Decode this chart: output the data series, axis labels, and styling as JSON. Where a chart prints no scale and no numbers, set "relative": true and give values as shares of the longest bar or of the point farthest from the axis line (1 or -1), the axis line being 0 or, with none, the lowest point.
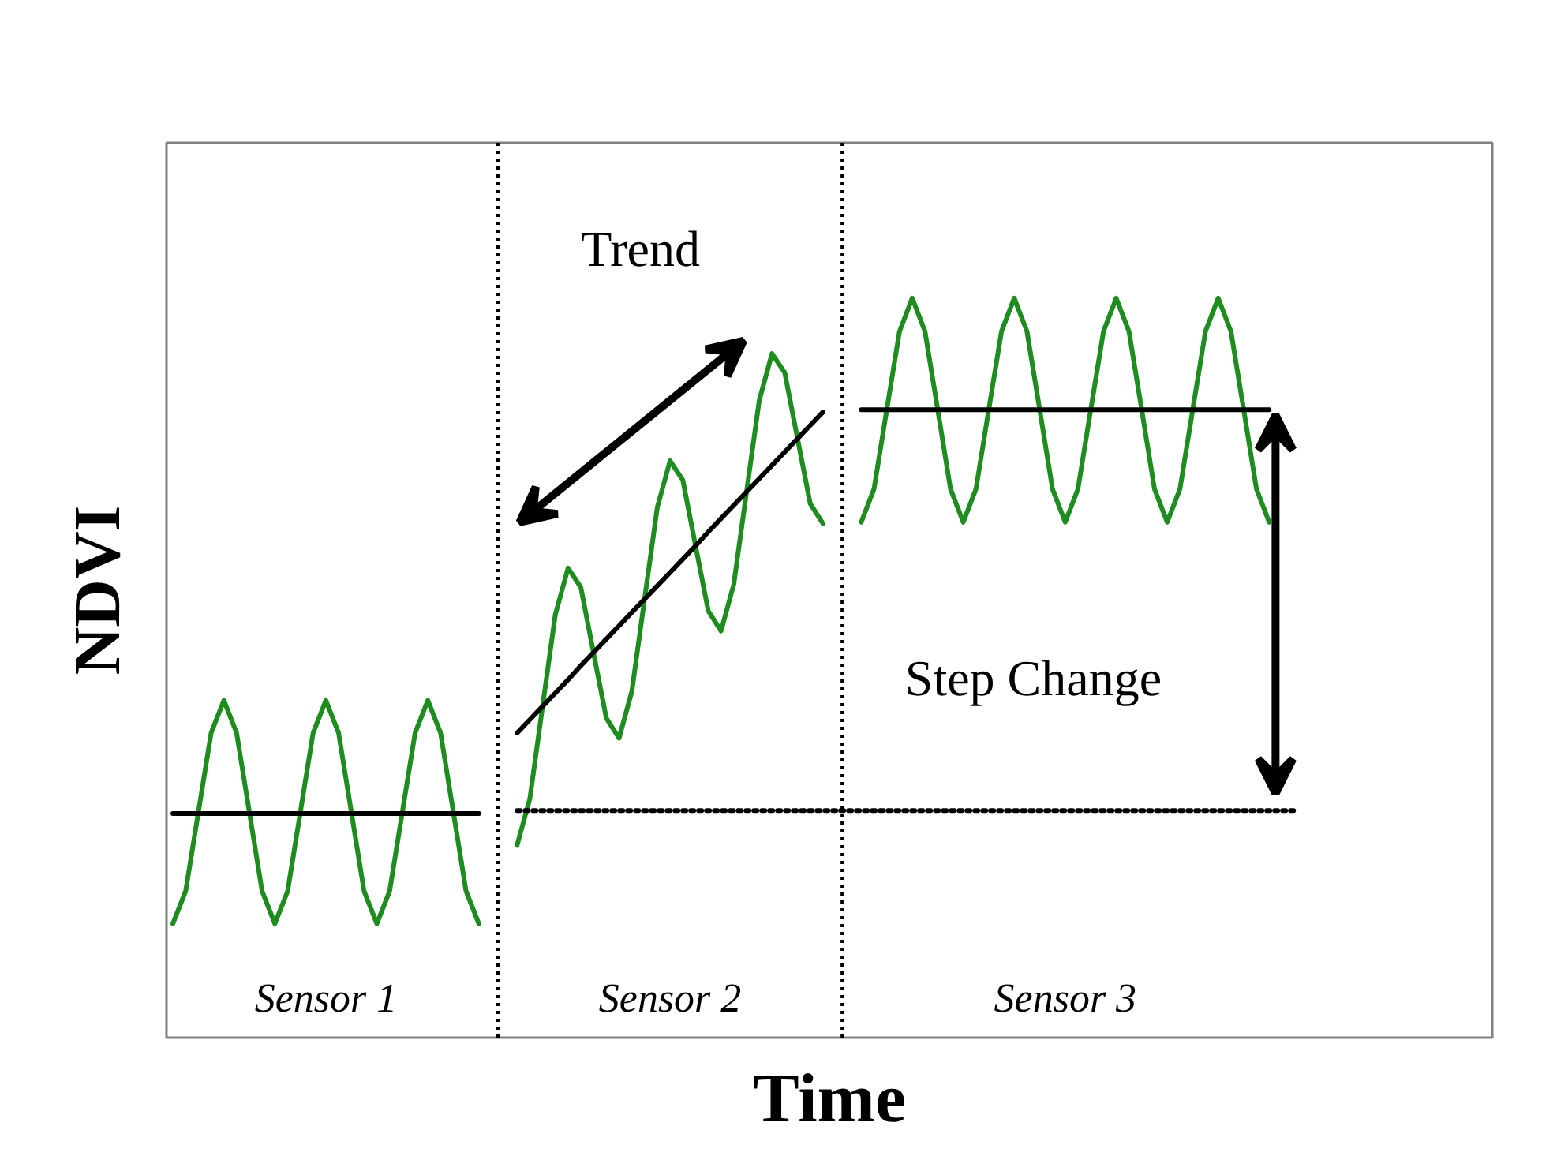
{
  "chart_data": {
    "type": "line",
    "relative": true,
    "xlabel": "Time",
    "ylabel": "NDVI",
    "tick_labels": false,
    "grid": false,
    "categories": [
      null,
      null,
      null,
      null,
      null,
      null,
      null,
      null,
      null,
      null,
      null,
      null,
      null,
      null,
      null,
      null,
      null,
      null,
      null,
      null,
      null,
      null,
      null,
      null,
      null,
      null,
      null,
      null,
      null,
      null,
      null,
      null,
      null,
      null,
      null,
      null,
      null,
      null,
      null,
      null,
      null,
      null,
      null,
      null,
      null,
      null,
      null,
      null,
      null,
      null,
      null,
      null,
      null,
      null,
      null,
      null,
      null,
      null,
      null,
      null,
      null,
      null,
      null,
      null,
      null,
      null,
      null,
      null,
      null,
      null,
      null,
      null,
      null,
      null,
      null,
      null,
      null,
      null,
      null,
      null,
      null,
      null,
      null,
      null,
      null,
      null,
      null,
      null,
      null,
      null,
      null,
      null,
      null,
      null,
      null,
      null,
      null,
      null,
      null,
      null,
      null,
      null,
      null,
      null
    ],
    "series": [
      {
        "color": "#1e8c1e",
        "values": [
          0.154,
          0.198,
          0.305,
          0.412,
          0.456,
          0.412,
          0.305,
          0.198,
          0.154,
          0.198,
          0.305,
          0.412,
          0.456,
          0.412,
          0.305,
          0.198,
          0.154,
          0.198,
          0.305,
          0.412,
          0.456,
          0.412,
          0.305,
          0.198,
          0.154,
          null,
          null,
          null,
          null,
          null,
          null,
          null,
          null,
          null,
          null,
          null,
          null,
          null,
          null,
          null,
          null,
          null,
          null,
          null,
          null,
          null,
          null,
          null,
          null,
          null,
          null,
          null,
          null,
          null,
          null,
          null,
          null,
          null,
          null,
          null,
          null,
          null,
          null,
          null,
          null,
          null,
          null,
          null,
          null,
          null,
          null,
          null,
          null,
          null,
          null,
          null,
          null,
          null,
          null,
          null,
          null,
          null,
          null,
          null,
          null,
          null,
          null,
          null,
          null,
          null,
          null,
          null,
          null,
          null,
          null,
          null,
          null,
          null,
          null,
          null,
          null,
          null,
          null,
          null
        ]
      },
      {
        "color": "#1e8c1e",
        "values": [
          null,
          null,
          null,
          null,
          null,
          null,
          null,
          null,
          null,
          null,
          null,
          null,
          null,
          null,
          null,
          null,
          null,
          null,
          null,
          null,
          null,
          null,
          null,
          null,
          null,
          null,
          null,
          0.26,
          0.323,
          0.448,
          0.572,
          0.635,
          0.609,
          0.52,
          0.432,
          0.405,
          0.468,
          0.593,
          0.717,
          0.78,
          0.754,
          0.665,
          0.577,
          0.55,
          0.613,
          0.738,
          0.862,
          0.925,
          0.899,
          0.81,
          0.722,
          0.695,
          null,
          null,
          null,
          null,
          null,
          null,
          null,
          null,
          null,
          null,
          null,
          null,
          null,
          null,
          null,
          null,
          null,
          null,
          null,
          null,
          null,
          null,
          null,
          null,
          null,
          null,
          null,
          null,
          null,
          null,
          null,
          null,
          null,
          null,
          null,
          null,
          null,
          null,
          null,
          null,
          null,
          null,
          null,
          null,
          null,
          null,
          null,
          null,
          null,
          null,
          null,
          null
        ]
      },
      {
        "color": "#1e8c1e",
        "values": [
          null,
          null,
          null,
          null,
          null,
          null,
          null,
          null,
          null,
          null,
          null,
          null,
          null,
          null,
          null,
          null,
          null,
          null,
          null,
          null,
          null,
          null,
          null,
          null,
          null,
          null,
          null,
          null,
          null,
          null,
          null,
          null,
          null,
          null,
          null,
          null,
          null,
          null,
          null,
          null,
          null,
          null,
          null,
          null,
          null,
          null,
          null,
          null,
          null,
          null,
          null,
          null,
          null,
          null,
          0.697,
          0.742,
          0.849,
          0.955,
          1,
          0.955,
          0.849,
          0.742,
          0.697,
          0.742,
          0.849,
          0.955,
          1,
          0.955,
          0.849,
          0.742,
          0.697,
          0.742,
          0.849,
          0.955,
          1,
          0.955,
          0.849,
          0.742,
          0.697,
          0.742,
          0.849,
          0.955,
          1,
          0.955,
          0.849,
          0.742,
          0.697,
          null,
          null,
          null,
          null,
          null,
          null,
          null,
          null,
          null,
          null,
          null,
          null,
          null,
          null,
          null,
          null,
          null
        ]
      },
      {
        "color": "#000000",
        "values": [
          0.303,
          0.303,
          0.303,
          0.303,
          0.303,
          0.303,
          0.303,
          0.303,
          0.303,
          0.303,
          0.303,
          0.303,
          0.303,
          0.303,
          0.303,
          0.303,
          0.303,
          0.303,
          0.303,
          0.303,
          0.303,
          0.303,
          0.303,
          0.303,
          0.303,
          null,
          null,
          null,
          null,
          null,
          null,
          null,
          null,
          null,
          null,
          null,
          null,
          null,
          null,
          null,
          null,
          null,
          null,
          null,
          null,
          null,
          null,
          null,
          null,
          null,
          null,
          null,
          null,
          null,
          null,
          null,
          null,
          null,
          null,
          null,
          null,
          null,
          null,
          null,
          null,
          null,
          null,
          null,
          null,
          null,
          null,
          null,
          null,
          null,
          null,
          null,
          null,
          null,
          null,
          null,
          null,
          null,
          null,
          null,
          null,
          null,
          null,
          null,
          null,
          null,
          null,
          null,
          null,
          null,
          null,
          null,
          null,
          null,
          null,
          null,
          null,
          null,
          null,
          null
        ]
      },
      {
        "color": "#000000",
        "values": [
          null,
          null,
          null,
          null,
          null,
          null,
          null,
          null,
          null,
          null,
          null,
          null,
          null,
          null,
          null,
          null,
          null,
          null,
          null,
          null,
          null,
          null,
          null,
          null,
          null,
          null,
          null,
          0.412,
          0.43,
          0.448,
          0.466,
          0.484,
          0.503,
          0.521,
          0.539,
          0.557,
          0.575,
          0.593,
          0.611,
          0.629,
          0.647,
          0.665,
          0.684,
          0.702,
          0.72,
          0.738,
          0.756,
          0.774,
          0.792,
          0.81,
          0.828,
          0.846,
          null,
          null,
          null,
          null,
          null,
          null,
          null,
          null,
          null,
          null,
          null,
          null,
          null,
          null,
          null,
          null,
          null,
          null,
          null,
          null,
          null,
          null,
          null,
          null,
          null,
          null,
          null,
          null,
          null,
          null,
          null,
          null,
          null,
          null,
          null,
          null,
          null,
          null,
          null,
          null,
          null,
          null,
          null,
          null,
          null,
          null,
          null,
          null,
          null,
          null,
          null,
          null
        ]
      },
      {
        "color": "#000000",
        "values": [
          null,
          null,
          null,
          null,
          null,
          null,
          null,
          null,
          null,
          null,
          null,
          null,
          null,
          null,
          null,
          null,
          null,
          null,
          null,
          null,
          null,
          null,
          null,
          null,
          null,
          null,
          null,
          null,
          null,
          null,
          null,
          null,
          null,
          null,
          null,
          null,
          null,
          null,
          null,
          null,
          null,
          null,
          null,
          null,
          null,
          null,
          null,
          null,
          null,
          null,
          null,
          null,
          null,
          null,
          0.849,
          0.849,
          0.849,
          0.849,
          0.849,
          0.849,
          0.849,
          0.849,
          0.849,
          0.849,
          0.849,
          0.849,
          0.849,
          0.849,
          0.849,
          0.849,
          0.849,
          0.849,
          0.849,
          0.849,
          0.849,
          0.849,
          0.849,
          0.849,
          0.849,
          0.849,
          0.849,
          0.849,
          0.849,
          0.849,
          0.849,
          0.849,
          0.849,
          null,
          null,
          null,
          null,
          null,
          null,
          null,
          null,
          null,
          null,
          null,
          null,
          null,
          null,
          null,
          null,
          null
        ]
      },
      {
        "color": "#000000",
        "line_style": "dotted",
        "values": [
          null,
          null,
          null,
          null,
          null,
          null,
          null,
          null,
          null,
          null,
          null,
          null,
          null,
          null,
          null,
          null,
          null,
          null,
          null,
          null,
          null,
          null,
          null,
          null,
          null,
          null,
          null,
          0.307,
          0.307,
          0.307,
          0.307,
          0.307,
          0.307,
          0.307,
          0.307,
          0.307,
          0.307,
          0.307,
          0.307,
          0.307,
          0.307,
          0.307,
          0.307,
          0.307,
          0.307,
          0.307,
          0.307,
          0.307,
          0.307,
          0.307,
          0.307,
          0.307,
          0.307,
          0.307,
          0.307,
          0.307,
          0.307,
          0.307,
          0.307,
          0.307,
          0.307,
          0.307,
          0.307,
          0.307,
          0.307,
          0.307,
          0.307,
          0.307,
          0.307,
          0.307,
          0.307,
          0.307,
          0.307,
          0.307,
          0.307,
          0.307,
          0.307,
          0.307,
          0.307,
          0.307,
          0.307,
          0.307,
          0.307,
          0.307,
          0.307,
          0.307,
          0.307,
          0.307,
          0.307,
          null,
          null,
          null,
          null,
          null,
          null,
          null,
          null,
          null,
          null,
          null,
          null,
          null,
          null,
          null
        ]
      }
    ],
    "annotations": [
      "Trend",
      "Step Change",
      "Sensor 1",
      "Sensor 2",
      "Sensor 3"
    ]
  }
}
